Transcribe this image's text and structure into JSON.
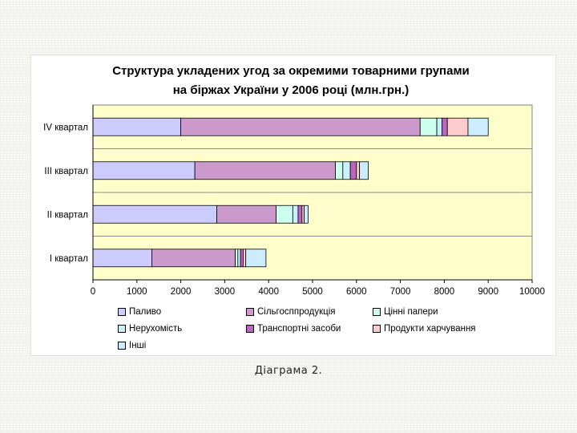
{
  "caption": "Діаграма 2.",
  "chart_data": {
    "type": "bar",
    "orientation": "horizontal",
    "stacked": true,
    "title_line1": "Структура укладених угод за окремими товарними групами",
    "title_line2": "на біржах України у 2006 році (млн.грн.)",
    "categories": [
      "IV квартал",
      "III квартал",
      "II квартал",
      "I квартал"
    ],
    "xlim": [
      0,
      10000
    ],
    "xticks": [
      0,
      1000,
      2000,
      3000,
      4000,
      5000,
      6000,
      7000,
      8000,
      9000,
      10000
    ],
    "grid": true,
    "legend_position": "bottom",
    "plot_background": "#ffffcc",
    "series": [
      {
        "name": "Паливо",
        "color": "#ccccff",
        "values": [
          2000,
          2320,
          2820,
          1340
        ]
      },
      {
        "name": "Сільгосппродукція",
        "color": "#cc99cc",
        "values": [
          5450,
          3200,
          1350,
          1900
        ]
      },
      {
        "name": "Цінні папери",
        "color": "#ccffee",
        "values": [
          380,
          170,
          380,
          60
        ]
      },
      {
        "name": "Нерухомість",
        "color": "#ccf0ff",
        "values": [
          120,
          170,
          120,
          60
        ]
      },
      {
        "name": "Транспортні засоби",
        "color": "#bb66bb",
        "values": [
          120,
          140,
          90,
          60
        ]
      },
      {
        "name": "Продукти харчування",
        "color": "#ffcccc",
        "values": [
          470,
          70,
          50,
          60
        ]
      },
      {
        "name": "Інші",
        "color": "#ccecff",
        "values": [
          460,
          200,
          90,
          460
        ]
      }
    ]
  }
}
